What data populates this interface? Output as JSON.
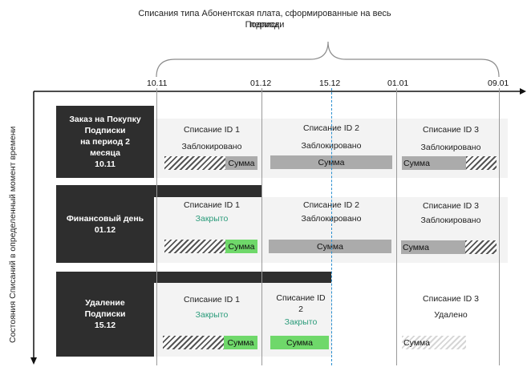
{
  "header": {
    "line1": "Списания типа Абонентская плата, сформированные на весь период",
    "line2": "Подписки"
  },
  "dates": [
    "10.11",
    "01.12",
    "15.12",
    "01.01",
    "09.01"
  ],
  "y_axis_label": "Состояния Списаний в определенный момент времени",
  "states": [
    {
      "title_lines": [
        "Заказ на Покупку",
        "Подписки",
        "на период 2",
        "месяца",
        "10.11"
      ],
      "cells": [
        {
          "id_label": "Списание ID 1",
          "status": "Заблокировано",
          "sum": "Сумма"
        },
        {
          "id_label": "Списание ID 2",
          "status": "Заблокировано",
          "sum": "Сумма"
        },
        {
          "id_label": "Списание ID 3",
          "status": "Заблокировано",
          "sum": "Сумма"
        }
      ]
    },
    {
      "title_lines": [
        "Финансовый день",
        "01.12"
      ],
      "cells": [
        {
          "id_label": "Списание ID 1",
          "status": "Закрыто",
          "sum": "Сумма"
        },
        {
          "id_label": "Списание ID 2",
          "status": "Заблокировано",
          "sum": "Сумма"
        },
        {
          "id_label": "Списание ID 3",
          "status": "Заблокировано",
          "sum": "Сумма"
        }
      ]
    },
    {
      "title_lines": [
        "Удаление",
        "Подписки",
        "15.12"
      ],
      "cells": [
        {
          "id_label": "Списание ID 1",
          "status": "Закрыто",
          "sum": "Сумма"
        },
        {
          "id_label_lines": [
            "Списание ID",
            "2"
          ],
          "status": "Закрыто",
          "sum": "Сумма"
        },
        {
          "id_label": "Списание ID 3",
          "status": "Удалено",
          "sum": "Сумма"
        }
      ]
    }
  ],
  "colors": {
    "dark": "#2e2e2e",
    "panel": "#f3f3f3",
    "gray_bar": "#ababab",
    "green_bar": "#6fd86a",
    "green_text": "#2a9b7a",
    "dashed_line": "#2a8fd0"
  }
}
